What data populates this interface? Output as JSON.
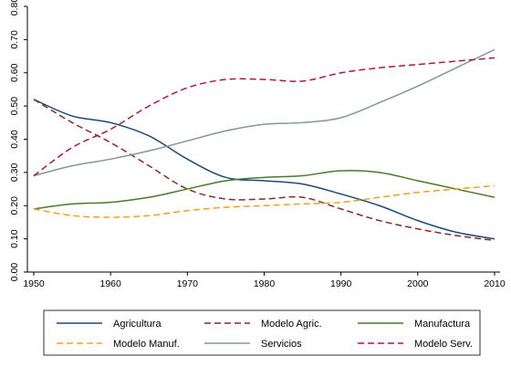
{
  "chart_data": {
    "type": "line",
    "title": "",
    "xlabel": "",
    "ylabel": "",
    "xlim": [
      1950,
      2010
    ],
    "ylim": [
      0,
      0.8
    ],
    "x_ticks": [
      {
        "value": 1950,
        "label": "1950"
      },
      {
        "value": 1960,
        "label": "1960"
      },
      {
        "value": 1970,
        "label": "1970"
      },
      {
        "value": 1980,
        "label": "1980"
      },
      {
        "value": 1990,
        "label": "1990"
      },
      {
        "value": 2000,
        "label": "2000"
      },
      {
        "value": 2010,
        "label": "2010"
      }
    ],
    "y_ticks": [
      {
        "value": 0.0,
        "label": "0.00"
      },
      {
        "value": 0.1,
        "label": "0.10"
      },
      {
        "value": 0.2,
        "label": "0.20"
      },
      {
        "value": 0.3,
        "label": "0.30"
      },
      {
        "value": 0.4,
        "label": "0.40"
      },
      {
        "value": 0.5,
        "label": "0.50"
      },
      {
        "value": 0.6,
        "label": "0.60"
      },
      {
        "value": 0.7,
        "label": "0.70"
      },
      {
        "value": 0.8,
        "label": "0.80"
      }
    ],
    "grid": false,
    "legend_placement": "bottom",
    "series": [
      {
        "name": "Agricultura",
        "color": "#1a4a7a",
        "dash": "solid",
        "x": [
          1950,
          1955,
          1960,
          1965,
          1970,
          1975,
          1980,
          1985,
          1990,
          1995,
          2000,
          2005,
          2010
        ],
        "y": [
          0.52,
          0.47,
          0.45,
          0.41,
          0.34,
          0.285,
          0.275,
          0.265,
          0.235,
          0.2,
          0.155,
          0.12,
          0.1
        ]
      },
      {
        "name": "Modelo Agric.",
        "color": "#8b2a1e",
        "dash": "dashed",
        "x": [
          1950,
          1955,
          1960,
          1965,
          1970,
          1975,
          1980,
          1985,
          1990,
          1995,
          2000,
          2005,
          2010
        ],
        "y": [
          0.52,
          0.45,
          0.39,
          0.32,
          0.25,
          0.22,
          0.22,
          0.225,
          0.19,
          0.155,
          0.13,
          0.11,
          0.095
        ]
      },
      {
        "name": "Manufactura",
        "color": "#4a7a2a",
        "dash": "solid",
        "x": [
          1950,
          1955,
          1960,
          1965,
          1970,
          1975,
          1980,
          1985,
          1990,
          1995,
          2000,
          2005,
          2010
        ],
        "y": [
          0.19,
          0.205,
          0.21,
          0.225,
          0.25,
          0.275,
          0.285,
          0.29,
          0.305,
          0.3,
          0.275,
          0.25,
          0.225
        ]
      },
      {
        "name": "Modelo Manuf.",
        "color": "#f0a020",
        "dash": "dashed",
        "x": [
          1950,
          1955,
          1960,
          1965,
          1970,
          1975,
          1980,
          1985,
          1990,
          1995,
          2000,
          2005,
          2010
        ],
        "y": [
          0.19,
          0.17,
          0.165,
          0.17,
          0.185,
          0.195,
          0.2,
          0.205,
          0.21,
          0.225,
          0.24,
          0.25,
          0.26
        ]
      },
      {
        "name": "Servicios",
        "color": "#7f9a94",
        "dash": "solid",
        "x": [
          1950,
          1955,
          1960,
          1965,
          1970,
          1975,
          1980,
          1985,
          1990,
          1995,
          2000,
          2005,
          2010
        ],
        "y": [
          0.29,
          0.32,
          0.34,
          0.365,
          0.395,
          0.425,
          0.445,
          0.45,
          0.465,
          0.51,
          0.56,
          0.615,
          0.67
        ]
      },
      {
        "name": "Modelo Serv.",
        "color": "#b0144a",
        "dash": "dashed",
        "x": [
          1950,
          1955,
          1960,
          1965,
          1970,
          1975,
          1980,
          1985,
          1990,
          1995,
          2000,
          2005,
          2010
        ],
        "y": [
          0.29,
          0.375,
          0.43,
          0.5,
          0.555,
          0.58,
          0.58,
          0.575,
          0.6,
          0.615,
          0.625,
          0.635,
          0.645
        ]
      }
    ]
  }
}
